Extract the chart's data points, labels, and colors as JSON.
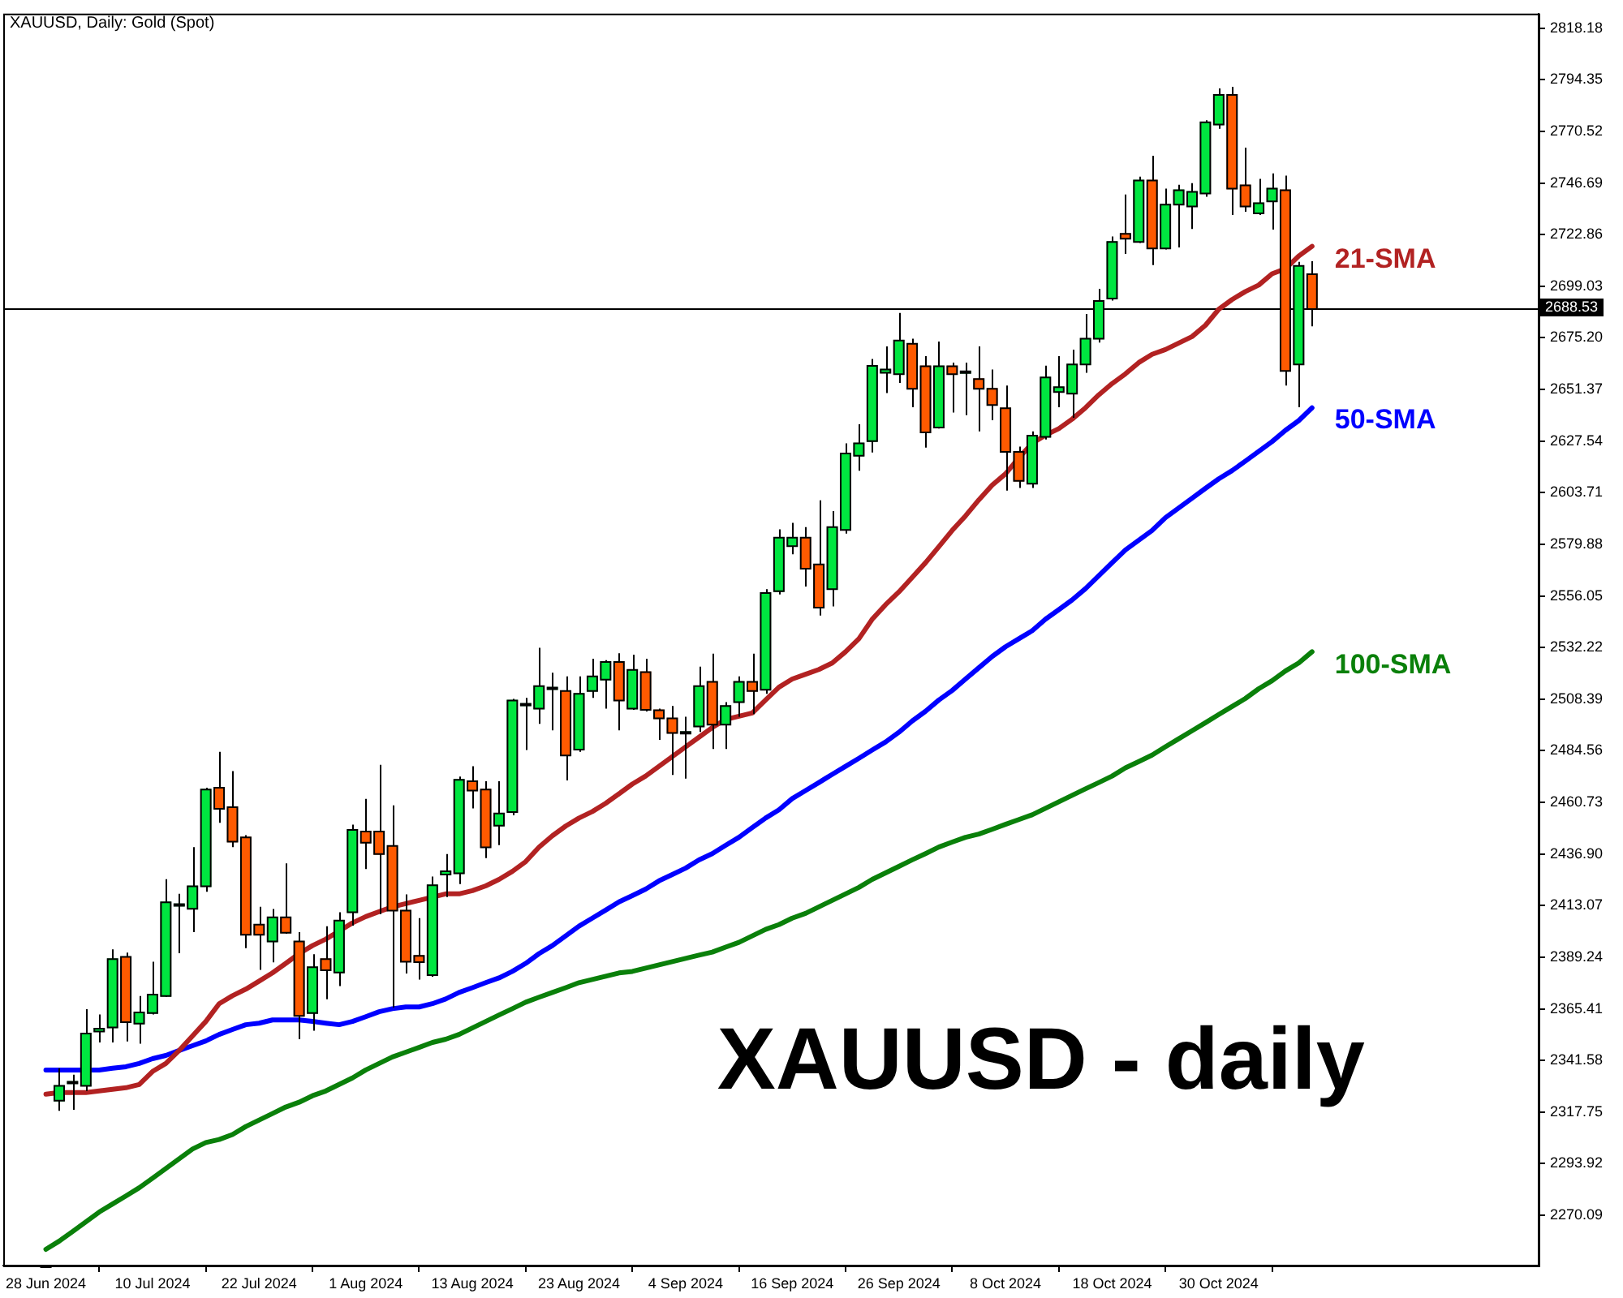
{
  "chart_data": {
    "type": "candlestick",
    "title": "XAUUSD, Daily: Gold (Spot)",
    "annotations": [
      "XAUUSD - daily"
    ],
    "categories": [
      "28 Jun 2024",
      null,
      null,
      null,
      null,
      null,
      null,
      null,
      "10 Jul 2024",
      null,
      null,
      null,
      null,
      null,
      null,
      null,
      "22 Jul 2024",
      null,
      null,
      null,
      null,
      null,
      null,
      null,
      "1 Aug 2024",
      null,
      null,
      null,
      null,
      null,
      null,
      null,
      "13 Aug 2024",
      null,
      null,
      null,
      null,
      null,
      null,
      null,
      "23 Aug 2024",
      null,
      null,
      null,
      null,
      null,
      null,
      null,
      "4 Sep 2024",
      null,
      null,
      null,
      null,
      null,
      null,
      null,
      "16 Sep 2024",
      null,
      null,
      null,
      null,
      null,
      null,
      null,
      "26 Sep 2024",
      null,
      null,
      null,
      null,
      null,
      null,
      null,
      "8 Oct 2024",
      null,
      null,
      null,
      null,
      null,
      null,
      null,
      "18 Oct 2024",
      null,
      null,
      null,
      null,
      null,
      null,
      null,
      "30 Oct 2024",
      null,
      null,
      null,
      null,
      null,
      null,
      null
    ],
    "ohlc": [
      null,
      [
        2323.0,
        2338.0,
        2318.3,
        2329.9
      ],
      [
        2331.0,
        2335.0,
        2318.8,
        2331.2
      ],
      [
        2329.9,
        2365.3,
        2327.5,
        2354.0
      ],
      [
        2355.0,
        2362.8,
        2349.9,
        2356.3
      ],
      [
        2356.8,
        2392.9,
        2349.9,
        2388.4
      ],
      [
        2389.4,
        2391.4,
        2350.4,
        2359.3
      ],
      [
        2358.6,
        2371.3,
        2349.3,
        2363.8
      ],
      [
        2363.5,
        2387.2,
        2362.8,
        2372.0
      ],
      [
        2371.3,
        2425.3,
        2371.0,
        2414.6
      ],
      [
        2413.0,
        2418.5,
        2391.1,
        2413.1
      ],
      [
        2411.6,
        2440.1,
        2400.8,
        2422.0
      ],
      [
        2422.0,
        2467.5,
        2419.5,
        2466.7
      ],
      [
        2467.5,
        2484.1,
        2451.3,
        2457.8
      ],
      [
        2458.5,
        2475.2,
        2440.1,
        2442.6
      ],
      [
        2444.6,
        2445.6,
        2393.4,
        2399.6
      ],
      [
        2404.3,
        2412.5,
        2383.4,
        2399.6
      ],
      [
        2396.5,
        2411.5,
        2386.9,
        2407.7
      ],
      [
        2407.7,
        2432.6,
        2400.1,
        2400.6
      ],
      [
        2396.5,
        2400.8,
        2351.4,
        2362.2
      ],
      [
        2363.5,
        2390.6,
        2355.3,
        2384.6
      ],
      [
        2388.4,
        2403.6,
        2369.8,
        2383.2
      ],
      [
        2382.2,
        2410.0,
        2375.9,
        2406.2
      ],
      [
        2410.0,
        2450.5,
        2403.8,
        2448.0
      ],
      [
        2447.3,
        2462.4,
        2430.0,
        2442.1
      ],
      [
        2447.3,
        2478.1,
        2409.2,
        2436.9
      ],
      [
        2440.6,
        2459.4,
        2366.0,
        2410.8
      ],
      [
        2410.8,
        2418.3,
        2381.7,
        2387.2
      ],
      [
        2389.9,
        2407.3,
        2378.9,
        2387.0
      ],
      [
        2381.0,
        2426.5,
        2380.2,
        2422.5
      ],
      [
        2427.4,
        2436.9,
        2417.0,
        2428.9
      ],
      [
        2428.0,
        2472.7,
        2423.0,
        2471.2
      ],
      [
        2470.5,
        2477.4,
        2458.0,
        2466.2
      ],
      [
        2466.7,
        2470.5,
        2435.0,
        2440.0
      ],
      [
        2450.0,
        2470.5,
        2441.0,
        2455.6
      ],
      [
        2456.3,
        2508.5,
        2454.8,
        2507.8
      ],
      [
        2505.5,
        2509.0,
        2484.9,
        2506.0
      ],
      [
        2504.0,
        2532.1,
        2497.0,
        2514.4
      ],
      [
        2513.0,
        2520.6,
        2494.0,
        2513.4
      ],
      [
        2512.2,
        2518.9,
        2470.9,
        2482.4
      ],
      [
        2485.1,
        2518.9,
        2484.1,
        2510.9
      ],
      [
        2512.2,
        2527.1,
        2509.0,
        2518.9
      ],
      [
        2517.4,
        2526.4,
        2504.0,
        2525.6
      ],
      [
        2525.6,
        2529.6,
        2494.0,
        2507.8
      ],
      [
        2504.0,
        2528.9,
        2503.5,
        2521.9
      ],
      [
        2520.9,
        2527.1,
        2502.7,
        2503.5
      ],
      [
        2503.3,
        2504.0,
        2489.6,
        2499.5
      ],
      [
        2499.5,
        2505.2,
        2473.4,
        2492.8
      ],
      [
        2492.5,
        2500.3,
        2471.7,
        2492.8
      ],
      [
        2495.8,
        2523.4,
        2493.3,
        2514.4
      ],
      [
        2516.4,
        2529.4,
        2485.4,
        2496.6
      ],
      [
        2496.6,
        2507.0,
        2485.4,
        2505.2
      ],
      [
        2507.0,
        2518.9,
        2500.3,
        2516.4
      ],
      [
        2516.4,
        2529.4,
        2501.5,
        2512.2
      ],
      [
        2512.7,
        2559.2,
        2510.9,
        2557.4
      ],
      [
        2558.2,
        2586.8,
        2556.7,
        2583.0
      ],
      [
        2579.0,
        2589.8,
        2575.3,
        2583.0
      ],
      [
        2583.0,
        2587.8,
        2560.4,
        2568.6
      ],
      [
        2570.6,
        2600.2,
        2547.0,
        2550.7
      ],
      [
        2559.2,
        2595.2,
        2551.2,
        2587.8
      ],
      [
        2586.5,
        2626.5,
        2584.8,
        2621.8
      ],
      [
        2620.8,
        2635.3,
        2613.9,
        2626.5
      ],
      [
        2627.5,
        2665.5,
        2622.3,
        2662.3
      ],
      [
        2659.1,
        2671.3,
        2649.7,
        2660.6
      ],
      [
        2658.4,
        2686.7,
        2654.4,
        2674.0
      ],
      [
        2672.5,
        2674.8,
        2643.2,
        2651.7
      ],
      [
        2662.1,
        2666.8,
        2624.5,
        2631.6
      ],
      [
        2633.8,
        2673.5,
        2633.3,
        2662.1
      ],
      [
        2662.1,
        2663.8,
        2640.7,
        2658.4
      ],
      [
        2659.0,
        2663.8,
        2639.5,
        2659.1
      ],
      [
        2656.2,
        2671.3,
        2632.0,
        2651.7
      ],
      [
        2651.7,
        2660.6,
        2637.2,
        2644.2
      ],
      [
        2642.7,
        2653.2,
        2604.7,
        2622.6
      ],
      [
        2622.6,
        2625.0,
        2605.9,
        2609.2
      ],
      [
        2607.9,
        2632.0,
        2605.9,
        2630.1
      ],
      [
        2629.5,
        2662.4,
        2628.3,
        2656.9
      ],
      [
        2650.2,
        2666.8,
        2643.2,
        2652.4
      ],
      [
        2649.4,
        2669.8,
        2638.3,
        2662.9
      ],
      [
        2662.9,
        2686.2,
        2659.1,
        2674.8
      ],
      [
        2674.8,
        2697.9,
        2673.0,
        2692.2
      ],
      [
        2693.4,
        2722.0,
        2692.4,
        2719.5
      ],
      [
        2723.2,
        2741.4,
        2714.0,
        2721.0
      ],
      [
        2719.5,
        2749.6,
        2719.0,
        2747.9
      ],
      [
        2747.9,
        2759.3,
        2708.8,
        2716.5
      ],
      [
        2716.5,
        2744.1,
        2716.0,
        2736.7
      ],
      [
        2736.7,
        2745.9,
        2717.0,
        2743.4
      ],
      [
        2735.9,
        2746.6,
        2725.5,
        2742.6
      ],
      [
        2741.9,
        2775.7,
        2740.4,
        2774.7
      ],
      [
        2773.7,
        2790.4,
        2771.7,
        2787.4
      ],
      [
        2787.4,
        2791.1,
        2731.9,
        2744.1
      ],
      [
        2745.6,
        2763.0,
        2733.4,
        2735.9
      ],
      [
        2732.7,
        2748.6,
        2731.9,
        2737.4
      ],
      [
        2738.2,
        2751.1,
        2725.2,
        2744.1
      ],
      [
        2743.4,
        2750.1,
        2653.2,
        2659.9
      ],
      [
        2662.9,
        2710.3,
        2643.2,
        2708.4
      ],
      [
        2704.6,
        2710.6,
        2680.5,
        2688.5
      ]
    ],
    "colors": [
      null,
      "#00e640",
      "#00e640",
      "#00e640",
      "#00e640",
      "#00e640",
      "#ff5a00",
      "#00e640",
      "#00e640",
      "#00e640",
      "#00e640",
      "#00e640",
      "#00e640",
      "#ff5a00",
      "#ff5a00",
      "#ff5a00",
      "#ff5a00",
      "#00e640",
      "#ff5a00",
      "#ff5a00",
      "#00e640",
      "#ff5a00",
      "#00e640",
      "#00e640",
      "#ff5a00",
      "#ff5a00",
      "#ff5a00",
      "#ff5a00",
      "#ff5a00",
      "#00e640",
      "#00e640",
      "#00e640",
      "#ff5a00",
      "#ff5a00",
      "#00e640",
      "#00e640",
      "#00e640",
      "#00e640",
      "#00e640",
      "#ff5a00",
      "#00e640",
      "#00e640",
      "#00e640",
      "#ff5a00",
      "#00e640",
      "#ff5a00",
      "#ff5a00",
      "#ff5a00",
      "#00e640",
      "#00e640",
      "#ff5a00",
      "#00e640",
      "#00e640",
      "#ff5a00",
      "#00e640",
      "#00e640",
      "#00e640",
      "#ff5a00",
      "#ff5a00",
      "#00e640",
      "#00e640",
      "#00e640",
      "#00e640",
      "#00e640",
      "#00e640",
      "#ff5a00",
      "#ff5a00",
      "#00e640",
      "#ff5a00",
      "#00e640",
      "#ff5a00",
      "#ff5a00",
      "#ff5a00",
      "#ff5a00",
      "#00e640",
      "#00e640",
      "#00e640",
      "#00e640",
      "#00e640",
      "#00e640",
      "#00e640",
      "#ff5a00",
      "#00e640",
      "#ff5a00",
      "#00e640",
      "#00e640",
      "#00e640",
      "#00e640",
      "#00e640",
      "#ff5a00",
      "#ff5a00",
      "#00e640",
      "#00e640",
      "#ff5a00",
      "#00e640",
      "#ff5a00"
    ],
    "series": [
      {
        "type": "line",
        "name": "21-SMA",
        "color": "#b22222",
        "values": [
          2326.0,
          2326.8,
          2326.8,
          2326.8,
          2327.5,
          2328.3,
          2329.0,
          2330.5,
          2336.5,
          2340.2,
          2346.2,
          2352.9,
          2359.6,
          2367.8,
          2371.5,
          2374.5,
          2378.2,
          2382.0,
          2386.4,
          2390.9,
          2394.6,
          2397.6,
          2401.3,
          2405.1,
          2408.0,
          2410.3,
          2412.5,
          2414.0,
          2415.5,
          2417.0,
          2418.5,
          2418.5,
          2420.0,
          2422.2,
          2425.2,
          2428.9,
          2433.4,
          2440.1,
          2445.3,
          2449.8,
          2453.5,
          2456.5,
          2460.3,
          2464.7,
          2469.2,
          2472.9,
          2477.4,
          2481.9,
          2486.4,
          2490.8,
          2495.3,
          2499.0,
          2500.5,
          2502.0,
          2508.0,
          2513.9,
          2517.7,
          2519.9,
          2522.1,
          2525.1,
          2530.3,
          2536.3,
          2545.3,
          2552.0,
          2557.9,
          2564.6,
          2571.4,
          2578.8,
          2586.3,
          2593.0,
          2600.4,
          2607.2,
          2612.4,
          2619.8,
          2626.5,
          2630.3,
          2633.3,
          2637.7,
          2642.9,
          2648.9,
          2654.1,
          2658.6,
          2663.8,
          2667.6,
          2669.8,
          2672.8,
          2675.8,
          2681.0,
          2688.4,
          2692.9,
          2696.6,
          2699.6,
          2704.8,
          2707.1,
          2713.0,
          2717.5
        ]
      },
      {
        "type": "line",
        "name": "50-SMA",
        "color": "#0000ff",
        "values": [
          2337.2,
          2337.2,
          2337.2,
          2337.2,
          2337.2,
          2338.0,
          2338.7,
          2340.2,
          2342.4,
          2343.9,
          2346.2,
          2348.4,
          2350.6,
          2353.6,
          2355.9,
          2358.1,
          2358.8,
          2360.3,
          2360.3,
          2360.3,
          2359.6,
          2358.8,
          2358.1,
          2359.6,
          2361.8,
          2364.1,
          2365.5,
          2366.3,
          2366.3,
          2367.8,
          2370.0,
          2373.0,
          2375.2,
          2377.5,
          2379.7,
          2382.7,
          2386.4,
          2390.9,
          2394.6,
          2399.1,
          2403.6,
          2407.3,
          2411.0,
          2414.8,
          2417.7,
          2420.7,
          2424.5,
          2427.4,
          2430.4,
          2434.2,
          2437.1,
          2440.9,
          2444.6,
          2449.1,
          2453.5,
          2457.3,
          2462.5,
          2466.2,
          2469.9,
          2473.7,
          2477.4,
          2481.1,
          2484.9,
          2488.6,
          2493.1,
          2498.3,
          2502.8,
          2508.0,
          2512.4,
          2517.7,
          2522.9,
          2528.1,
          2532.6,
          2536.3,
          2540.0,
          2545.3,
          2549.7,
          2554.2,
          2559.4,
          2565.4,
          2571.4,
          2577.3,
          2581.8,
          2586.3,
          2592.2,
          2596.7,
          2601.2,
          2605.7,
          2610.1,
          2613.9,
          2618.3,
          2622.8,
          2627.3,
          2632.5,
          2637.0,
          2642.9
        ]
      },
      {
        "type": "line",
        "name": "100-SMA",
        "color": "#0a800a",
        "values": [
          2254.4,
          2258.2,
          2262.6,
          2267.1,
          2271.6,
          2275.3,
          2279.0,
          2282.8,
          2287.2,
          2291.7,
          2296.2,
          2300.7,
          2303.7,
          2305.1,
          2307.4,
          2311.1,
          2314.1,
          2317.1,
          2320.1,
          2322.3,
          2325.3,
          2327.5,
          2330.5,
          2333.5,
          2337.2,
          2340.2,
          2343.2,
          2345.4,
          2347.6,
          2349.9,
          2351.4,
          2353.6,
          2356.6,
          2359.6,
          2362.6,
          2365.5,
          2368.5,
          2370.8,
          2373.0,
          2375.2,
          2377.5,
          2379.0,
          2380.5,
          2382.0,
          2382.7,
          2384.2,
          2385.7,
          2387.2,
          2388.7,
          2390.2,
          2391.6,
          2393.9,
          2396.1,
          2399.1,
          2402.1,
          2404.3,
          2407.3,
          2409.5,
          2412.5,
          2415.5,
          2418.5,
          2421.5,
          2425.2,
          2428.2,
          2431.2,
          2434.2,
          2437.1,
          2440.1,
          2442.4,
          2444.6,
          2446.1,
          2448.3,
          2450.6,
          2452.8,
          2455.0,
          2458.0,
          2461.0,
          2464.0,
          2467.0,
          2469.9,
          2472.9,
          2476.7,
          2479.6,
          2482.6,
          2486.4,
          2490.1,
          2493.8,
          2497.5,
          2501.3,
          2505.0,
          2508.7,
          2513.2,
          2516.9,
          2521.4,
          2525.1,
          2530.3
        ]
      }
    ],
    "ylim": [
      2246.9,
      2824.9
    ],
    "yticks": [
      2270.09,
      2293.92,
      2317.75,
      2341.58,
      2365.41,
      2389.24,
      2413.07,
      {
        "value": 2436.9,
        "label": "2436.90"
      },
      2460.73,
      2484.56,
      2508.39,
      2532.22,
      2556.05,
      2579.88,
      2603.71,
      2627.54,
      2651.37,
      {
        "value": 2675.2,
        "label": "2675.20"
      },
      2699.03,
      2722.86,
      2746.69,
      2770.52,
      2794.35,
      2818.18
    ],
    "ref_lines": [
      {
        "axis": "y",
        "value": 2688.53,
        "label": "2688.53",
        "color": "#000000"
      }
    ]
  }
}
